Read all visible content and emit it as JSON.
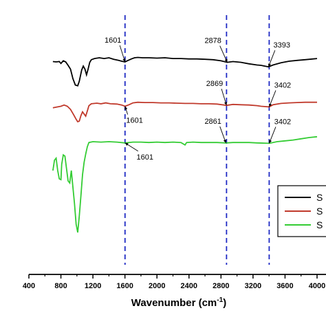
{
  "chart_data": {
    "type": "line",
    "xlabel": "Wavenumber (cm",
    "xlabel_sup": "-1",
    "xlabel_close": ")",
    "xlim": [
      400,
      4000
    ],
    "xticks": [
      400,
      800,
      1200,
      1600,
      2000,
      2400,
      2800,
      3200,
      3600,
      4000
    ],
    "xtick_labels": [
      "400",
      "800",
      "1200",
      "1600",
      "2000",
      "2400",
      "2800",
      "3200",
      "3600",
      "4000"
    ],
    "ylabel": "",
    "y_axis_visible": false,
    "grid": false,
    "legend": {
      "placement": "right",
      "entries": [
        "S",
        "S",
        "S"
      ]
    },
    "series": [
      {
        "name": "S",
        "color": "#000000",
        "points": [
          [
            700,
            0.1
          ],
          [
            740,
            0.11
          ],
          [
            780,
            0.1
          ],
          [
            800,
            0.15
          ],
          [
            830,
            0.08
          ],
          [
            860,
            0.11
          ],
          [
            890,
            0.2
          ],
          [
            920,
            0.3
          ],
          [
            950,
            0.55
          ],
          [
            980,
            0.72
          ],
          [
            1010,
            0.74
          ],
          [
            1030,
            0.62
          ],
          [
            1060,
            0.32
          ],
          [
            1080,
            0.22
          ],
          [
            1100,
            0.3
          ],
          [
            1120,
            0.45
          ],
          [
            1140,
            0.3
          ],
          [
            1160,
            0.12
          ],
          [
            1180,
            0.05
          ],
          [
            1220,
            0.02
          ],
          [
            1280,
            0.0
          ],
          [
            1340,
            0.02
          ],
          [
            1400,
            0.0
          ],
          [
            1460,
            0.04
          ],
          [
            1520,
            0.07
          ],
          [
            1560,
            0.09
          ],
          [
            1600,
            0.11
          ],
          [
            1640,
            0.07
          ],
          [
            1680,
            0.03
          ],
          [
            1720,
            0.0
          ],
          [
            1760,
            -0.01
          ],
          [
            1820,
            0.0
          ],
          [
            1900,
            0.0
          ],
          [
            2000,
            0.01
          ],
          [
            2100,
            0.0
          ],
          [
            2200,
            0.02
          ],
          [
            2300,
            0.02
          ],
          [
            2400,
            0.03
          ],
          [
            2500,
            0.03
          ],
          [
            2600,
            0.04
          ],
          [
            2700,
            0.05
          ],
          [
            2800,
            0.08
          ],
          [
            2878,
            0.12
          ],
          [
            2950,
            0.1
          ],
          [
            3050,
            0.12
          ],
          [
            3150,
            0.16
          ],
          [
            3250,
            0.19
          ],
          [
            3300,
            0.2
          ],
          [
            3393,
            0.24
          ],
          [
            3450,
            0.19
          ],
          [
            3550,
            0.13
          ],
          [
            3650,
            0.09
          ],
          [
            3750,
            0.07
          ],
          [
            3850,
            0.05
          ],
          [
            3950,
            0.03
          ],
          [
            4000,
            0.02
          ]
        ]
      },
      {
        "name": "S",
        "color": "#c0392b",
        "points": [
          [
            700,
            1.15
          ],
          [
            760,
            1.12
          ],
          [
            800,
            1.1
          ],
          [
            840,
            1.06
          ],
          [
            880,
            1.1
          ],
          [
            920,
            1.2
          ],
          [
            960,
            1.38
          ],
          [
            990,
            1.52
          ],
          [
            1010,
            1.6
          ],
          [
            1030,
            1.58
          ],
          [
            1050,
            1.4
          ],
          [
            1070,
            1.28
          ],
          [
            1090,
            1.35
          ],
          [
            1110,
            1.42
          ],
          [
            1130,
            1.25
          ],
          [
            1150,
            1.08
          ],
          [
            1180,
            1.02
          ],
          [
            1250,
            1.0
          ],
          [
            1300,
            1.02
          ],
          [
            1360,
            0.99
          ],
          [
            1420,
            1.02
          ],
          [
            1500,
            1.03
          ],
          [
            1560,
            1.06
          ],
          [
            1601,
            1.1
          ],
          [
            1650,
            1.05
          ],
          [
            1700,
            0.99
          ],
          [
            1760,
            0.97
          ],
          [
            1850,
            0.98
          ],
          [
            1950,
            0.98
          ],
          [
            2050,
            0.99
          ],
          [
            2150,
            0.99
          ],
          [
            2250,
            1.0
          ],
          [
            2350,
            1.01
          ],
          [
            2450,
            1.01
          ],
          [
            2550,
            1.02
          ],
          [
            2650,
            1.02
          ],
          [
            2750,
            1.03
          ],
          [
            2869,
            1.07
          ],
          [
            2950,
            1.04
          ],
          [
            3050,
            1.05
          ],
          [
            3150,
            1.06
          ],
          [
            3250,
            1.08
          ],
          [
            3300,
            1.1
          ],
          [
            3402,
            1.12
          ],
          [
            3450,
            1.05
          ],
          [
            3550,
            1.01
          ],
          [
            3650,
            0.99
          ],
          [
            3750,
            0.98
          ],
          [
            3850,
            0.97
          ],
          [
            3950,
            0.97
          ],
          [
            4000,
            0.97
          ]
        ]
      },
      {
        "name": "S",
        "color": "#33cc33",
        "points": [
          [
            700,
            2.3
          ],
          [
            720,
            2.05
          ],
          [
            740,
            2.0
          ],
          [
            760,
            2.3
          ],
          [
            780,
            2.5
          ],
          [
            800,
            2.52
          ],
          [
            810,
            2.15
          ],
          [
            830,
            1.92
          ],
          [
            850,
            1.95
          ],
          [
            870,
            2.25
          ],
          [
            890,
            2.55
          ],
          [
            910,
            2.6
          ],
          [
            930,
            2.3
          ],
          [
            950,
            2.7
          ],
          [
            970,
            3.1
          ],
          [
            990,
            3.6
          ],
          [
            1010,
            3.8
          ],
          [
            1030,
            3.4
          ],
          [
            1050,
            2.9
          ],
          [
            1070,
            2.4
          ],
          [
            1090,
            2.1
          ],
          [
            1110,
            1.9
          ],
          [
            1130,
            1.72
          ],
          [
            1150,
            1.62
          ],
          [
            1200,
            1.6
          ],
          [
            1300,
            1.61
          ],
          [
            1400,
            1.6
          ],
          [
            1500,
            1.61
          ],
          [
            1601,
            1.63
          ],
          [
            1700,
            1.61
          ],
          [
            1800,
            1.61
          ],
          [
            1900,
            1.62
          ],
          [
            2000,
            1.61
          ],
          [
            2100,
            1.62
          ],
          [
            2200,
            1.61
          ],
          [
            2300,
            1.62
          ],
          [
            2350,
            1.68
          ],
          [
            2370,
            1.62
          ],
          [
            2450,
            1.61
          ],
          [
            2550,
            1.62
          ],
          [
            2650,
            1.62
          ],
          [
            2750,
            1.62
          ],
          [
            2861,
            1.63
          ],
          [
            2950,
            1.62
          ],
          [
            3050,
            1.62
          ],
          [
            3150,
            1.62
          ],
          [
            3250,
            1.63
          ],
          [
            3402,
            1.64
          ],
          [
            3500,
            1.6
          ],
          [
            3600,
            1.58
          ],
          [
            3700,
            1.56
          ],
          [
            3800,
            1.53
          ],
          [
            3900,
            1.5
          ],
          [
            4000,
            1.48
          ]
        ]
      }
    ],
    "reference_lines": [
      1601,
      2869,
      3402
    ],
    "annotations": [
      {
        "text": "1601",
        "series": 0,
        "x": 1601,
        "label_x": 1450,
        "label_row": "above"
      },
      {
        "text": "2878",
        "series": 0,
        "x": 2878,
        "label_x": 2700,
        "label_row": "above"
      },
      {
        "text": "3393",
        "series": 0,
        "x": 3393,
        "label_x": 3560,
        "label_row": "above"
      },
      {
        "text": "2869",
        "series": 1,
        "x": 2869,
        "label_x": 2720,
        "label_row": "above"
      },
      {
        "text": "3402",
        "series": 1,
        "x": 3402,
        "label_x": 3570,
        "label_row": "above"
      },
      {
        "text": "1601",
        "series": 1,
        "x": 1601,
        "label_x": 1720,
        "label_row": "below"
      },
      {
        "text": "2861",
        "series": 2,
        "x": 2861,
        "label_x": 2700,
        "label_row": "above"
      },
      {
        "text": "3402",
        "series": 2,
        "x": 3402,
        "label_x": 3570,
        "label_row": "above"
      },
      {
        "text": "1601",
        "series": 2,
        "x": 1601,
        "label_x": 1850,
        "label_row": "below"
      }
    ]
  }
}
